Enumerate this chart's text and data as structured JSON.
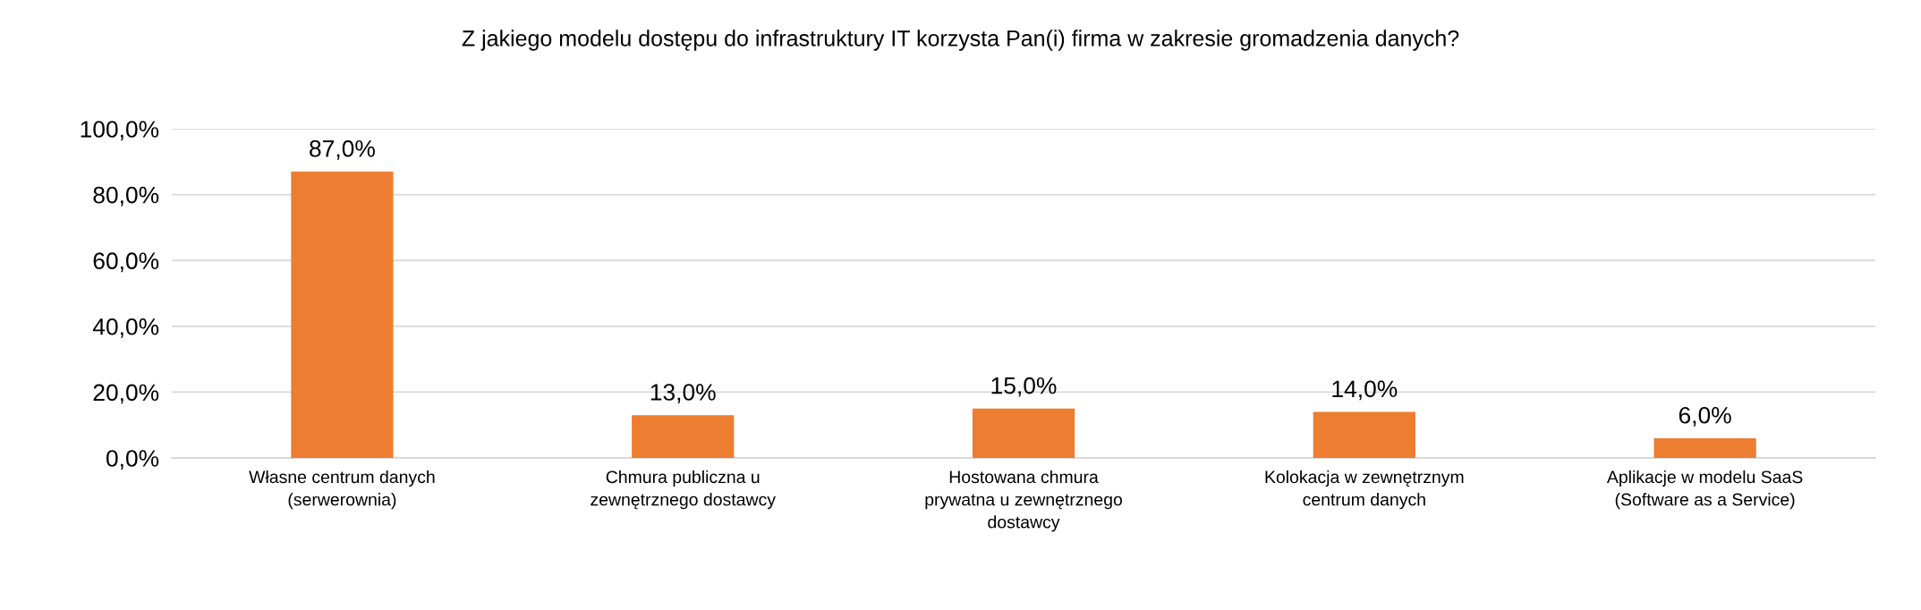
{
  "chart_data": {
    "type": "bar",
    "title": "Z jakiego modelu dostępu do infrastruktury IT korzysta Pan(i) firma w zakresie gromadzenia danych?",
    "categories": [
      "Własne centrum danych\n(serwerownia)",
      "Chmura publiczna u\nzewnętrznego dostawcy",
      "Hostowana chmura\nprywatna u zewnętrznego\ndostawcy",
      "Kolokacja w zewnętrznym\ncentrum danych",
      "Aplikacje w modelu SaaS\n(Software as a Service)"
    ],
    "values": [
      87.0,
      13.0,
      15.0,
      14.0,
      6.0
    ],
    "value_labels": [
      "87,0%",
      "13,0%",
      "15,0%",
      "14,0%",
      "6,0%"
    ],
    "color": "#ed7d31",
    "ylim": [
      0,
      100
    ],
    "yticks": [
      {
        "value": 0,
        "label": "0,0%"
      },
      {
        "value": 20,
        "label": "20,0%"
      },
      {
        "value": 40,
        "label": "40,0%"
      },
      {
        "value": 60,
        "label": "60,0%"
      },
      {
        "value": 80,
        "label": "80,0%"
      },
      {
        "value": 100,
        "label": "100,0%"
      }
    ],
    "grid": "y",
    "legend": false
  }
}
